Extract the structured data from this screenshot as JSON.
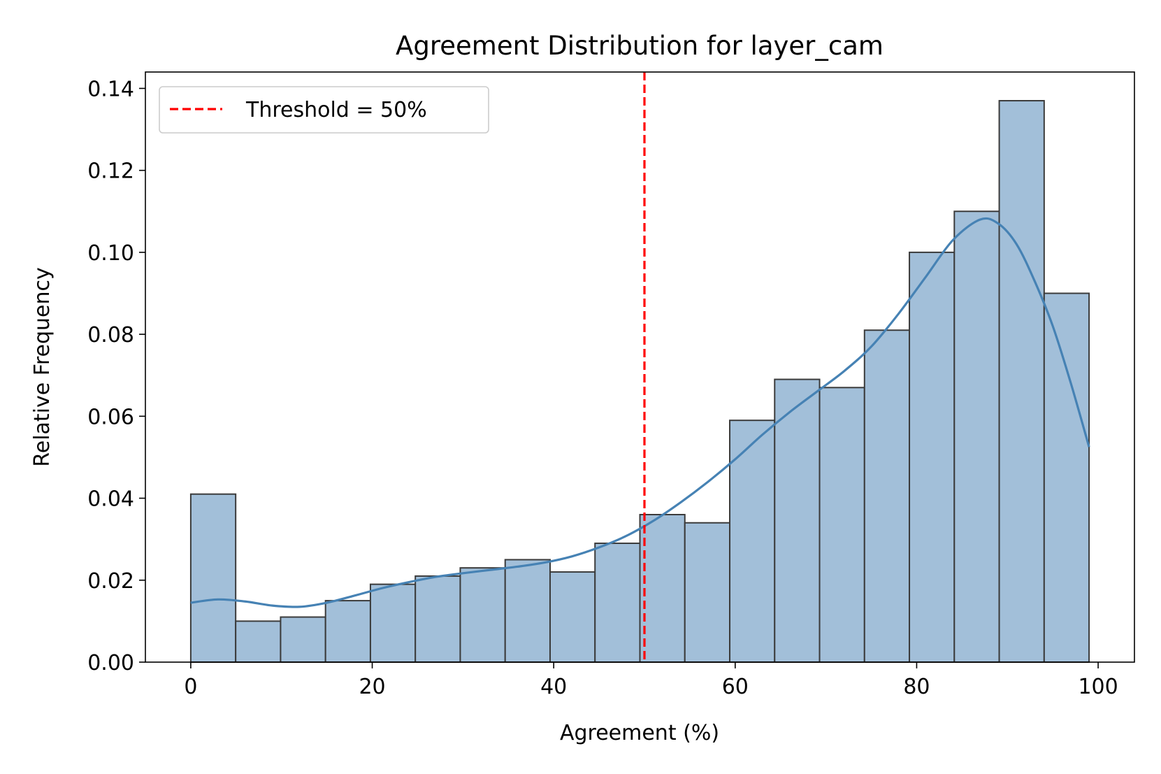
{
  "chart_data": {
    "type": "bar",
    "title": "Agreement Distribution for layer_cam",
    "xlabel": "Agreement (%)",
    "ylabel": "Relative Frequency",
    "xlim": [
      -5,
      104
    ],
    "ylim": [
      0,
      0.144
    ],
    "xticks": [
      0,
      20,
      40,
      60,
      80,
      100
    ],
    "yticks": [
      "0.00",
      "0.02",
      "0.04",
      "0.06",
      "0.08",
      "0.10",
      "0.12",
      "0.14"
    ],
    "grid": false,
    "legend_position": "top-left",
    "bar_color": "#a2bfd9",
    "bar_edge_color": "#3b3b3b",
    "bins": [
      {
        "x0": 0.0,
        "x1": 4.95,
        "value": 0.041
      },
      {
        "x0": 4.95,
        "x1": 9.9,
        "value": 0.01
      },
      {
        "x0": 9.9,
        "x1": 14.85,
        "value": 0.011
      },
      {
        "x0": 14.85,
        "x1": 19.8,
        "value": 0.015
      },
      {
        "x0": 19.8,
        "x1": 24.75,
        "value": 0.019
      },
      {
        "x0": 24.75,
        "x1": 29.7,
        "value": 0.021
      },
      {
        "x0": 29.7,
        "x1": 34.65,
        "value": 0.023
      },
      {
        "x0": 34.65,
        "x1": 39.6,
        "value": 0.025
      },
      {
        "x0": 39.6,
        "x1": 44.55,
        "value": 0.022
      },
      {
        "x0": 44.55,
        "x1": 49.5,
        "value": 0.029
      },
      {
        "x0": 49.5,
        "x1": 54.45,
        "value": 0.036
      },
      {
        "x0": 54.45,
        "x1": 59.4,
        "value": 0.034
      },
      {
        "x0": 59.4,
        "x1": 64.35,
        "value": 0.059
      },
      {
        "x0": 64.35,
        "x1": 69.3,
        "value": 0.069
      },
      {
        "x0": 69.3,
        "x1": 74.25,
        "value": 0.067
      },
      {
        "x0": 74.25,
        "x1": 79.2,
        "value": 0.081
      },
      {
        "x0": 79.2,
        "x1": 84.15,
        "value": 0.1
      },
      {
        "x0": 84.15,
        "x1": 89.1,
        "value": 0.11
      },
      {
        "x0": 89.1,
        "x1": 94.05,
        "value": 0.137
      },
      {
        "x0": 94.05,
        "x1": 99.0,
        "value": 0.09
      }
    ],
    "kde": {
      "color": "#4682b4",
      "points": [
        [
          0,
          0.0145
        ],
        [
          3,
          0.0153
        ],
        [
          6,
          0.0148
        ],
        [
          9,
          0.0138
        ],
        [
          12,
          0.0135
        ],
        [
          15,
          0.0145
        ],
        [
          18,
          0.0162
        ],
        [
          21,
          0.018
        ],
        [
          24,
          0.0195
        ],
        [
          27,
          0.0208
        ],
        [
          30,
          0.0217
        ],
        [
          33,
          0.0225
        ],
        [
          36,
          0.0233
        ],
        [
          39,
          0.0243
        ],
        [
          42,
          0.0258
        ],
        [
          45,
          0.028
        ],
        [
          48,
          0.0308
        ],
        [
          51,
          0.0345
        ],
        [
          54,
          0.039
        ],
        [
          57,
          0.044
        ],
        [
          60,
          0.0495
        ],
        [
          63,
          0.0555
        ],
        [
          66,
          0.061
        ],
        [
          69,
          0.066
        ],
        [
          72,
          0.071
        ],
        [
          75,
          0.077
        ],
        [
          78,
          0.085
        ],
        [
          81,
          0.094
        ],
        [
          84,
          0.103
        ],
        [
          87,
          0.108
        ],
        [
          89,
          0.107
        ],
        [
          91,
          0.102
        ],
        [
          93,
          0.093
        ],
        [
          95,
          0.082
        ],
        [
          97,
          0.068
        ],
        [
          99,
          0.0525
        ]
      ]
    },
    "threshold": {
      "value": 50,
      "label": "Threshold = 50%",
      "color": "#ff0000"
    }
  }
}
